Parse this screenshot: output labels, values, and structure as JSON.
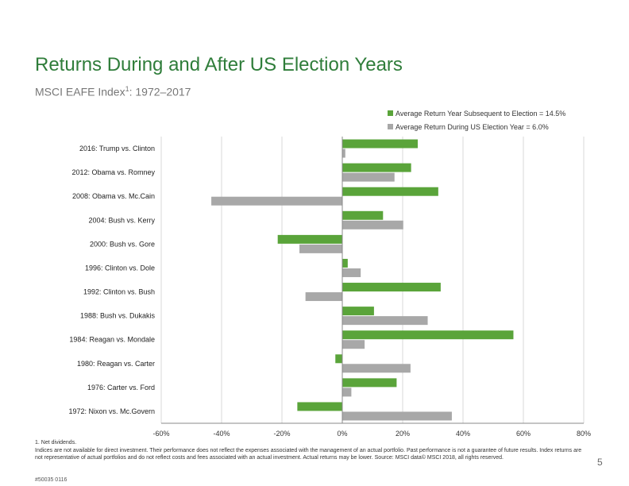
{
  "title": "Returns During and After US Election Years",
  "subtitle": {
    "text": "MSCI EAFE Index",
    "sup": "1",
    "range": ": 1972–2017"
  },
  "legend": {
    "subsequent": "Average Return Year Subsequent to Election = 14.5%",
    "during": "Average Return During US Election Year = 6.0%"
  },
  "colors": {
    "subsequent": "#5aa43a",
    "during": "#a8a8a8",
    "title": "#2f7d3a",
    "grid": "#d9d9d9"
  },
  "chart_data": {
    "type": "bar",
    "orientation": "horizontal",
    "title": "Returns During and After US Election Years",
    "categories": [
      "2016: Trump vs. Clinton",
      "2012: Obama vs. Romney",
      "2008: Obama vs. McCain",
      "2004: Bush vs. Kerry",
      "2000: Bush vs. Gore",
      "1996: Clinton vs. Dole",
      "1992: Clinton vs. Bush",
      "1988: Bush vs. Dukakis",
      "1984: Reagan vs. Mondale",
      "1980: Reagan vs. Carter",
      "1976: Carter vs. Ford",
      "1972: Nixon vs. McGovern"
    ],
    "category_labels": [
      "2016: Trump vs. Clinton",
      "2012: Obama vs. Romney",
      "2008: Obama vs. Mc.Cain",
      "2004: Bush vs. Kerry",
      "2000: Bush vs. Gore",
      "1996: Clinton vs. Dole",
      "1992: Clinton vs. Bush",
      "1988: Bush vs. Dukakis",
      "1984: Reagan vs. Mondale",
      "1980: Reagan vs. Carter",
      "1976: Carter vs. Ford",
      "1972: Nixon vs. Mc.Govern"
    ],
    "series": [
      {
        "name": "Average Return Year Subsequent to Election",
        "values": [
          25.0,
          22.8,
          31.8,
          13.5,
          -21.4,
          1.8,
          32.6,
          10.5,
          56.7,
          -2.3,
          18.0,
          -14.9
        ]
      },
      {
        "name": "Average Return During US Election Year",
        "values": [
          1.0,
          17.3,
          -43.4,
          20.2,
          -14.2,
          6.1,
          -12.2,
          28.3,
          7.4,
          22.6,
          3.0,
          36.3
        ]
      }
    ],
    "xlim": [
      -60,
      80
    ],
    "xticks": [
      -60,
      -40,
      -20,
      0,
      20,
      40,
      60,
      80
    ],
    "xtick_labels": [
      "-60%",
      "-40%",
      "-20%",
      "0%",
      "20%",
      "40%",
      "60%",
      "80%"
    ],
    "xlabel": "",
    "ylabel": "",
    "grid": true
  },
  "footnote": {
    "line1": "1. Net dividends.",
    "line2": "Indices are not available for direct investment. Their performance does not reflect the expenses associated with the management of an actual portfolio. Past performance is not a guarantee of future results. Index returns are not representative of actual portfolios and do not reflect costs and fees associated with an actual investment. Actual returns may be lower. Source: MSCI data© MSCI 2018, all rights reserved."
  },
  "page_number": "5",
  "doc_id": "#50035 0116"
}
